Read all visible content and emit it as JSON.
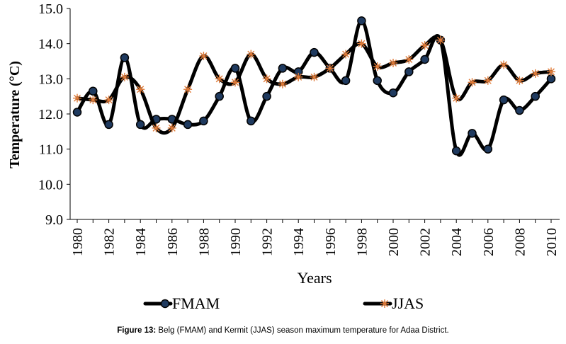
{
  "chart_data": {
    "type": "line",
    "xlabel": "Years",
    "ylabel": "Temperature (°C)",
    "ylim": [
      9.0,
      15.0
    ],
    "yticks": [
      "9.0",
      "10.0",
      "11.0",
      "12.0",
      "13.0",
      "14.0",
      "15.0"
    ],
    "xticks": [
      "1980",
      "1982",
      "1984",
      "1986",
      "1988",
      "1990",
      "1992",
      "1994",
      "1996",
      "1998",
      "2000",
      "2002",
      "2004",
      "2006",
      "2008",
      "2010"
    ],
    "x": [
      1980,
      1981,
      1982,
      1983,
      1984,
      1985,
      1986,
      1987,
      1988,
      1989,
      1990,
      1991,
      1992,
      1993,
      1994,
      1995,
      1996,
      1997,
      1998,
      1999,
      2000,
      2001,
      2002,
      2003,
      2004,
      2005,
      2006,
      2007,
      2008,
      2009,
      2010
    ],
    "grid": false,
    "legend_position": "bottom",
    "series": [
      {
        "name": "FMAM",
        "marker": "circle",
        "color": "#000000",
        "marker_color": "#1f3a5f",
        "values": [
          12.05,
          12.65,
          11.7,
          13.6,
          11.7,
          11.85,
          11.85,
          11.7,
          11.8,
          12.5,
          13.3,
          11.8,
          12.5,
          13.3,
          13.2,
          13.75,
          13.3,
          12.95,
          14.65,
          12.95,
          12.6,
          13.2,
          13.55,
          14.1,
          10.95,
          11.45,
          11.0,
          12.4,
          12.1,
          12.5,
          13.0
        ]
      },
      {
        "name": "JJAS",
        "marker": "star",
        "color": "#000000",
        "marker_color": "#e07b39",
        "values": [
          12.45,
          12.4,
          12.4,
          13.05,
          12.7,
          11.6,
          11.6,
          12.7,
          13.65,
          13.0,
          12.9,
          13.7,
          13.0,
          12.85,
          13.05,
          13.05,
          13.3,
          13.7,
          14.0,
          13.35,
          13.45,
          13.55,
          13.95,
          14.1,
          12.45,
          12.9,
          12.95,
          13.4,
          12.95,
          13.15,
          13.2
        ]
      }
    ]
  },
  "caption": {
    "label": "Figure 13:",
    "text": " Belg (FMAM) and Kermit (JJAS) season maximum temperature for Adaa District."
  }
}
